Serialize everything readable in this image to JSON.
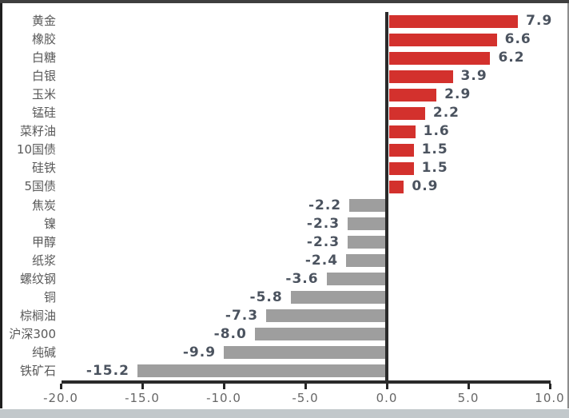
{
  "chart_data": {
    "type": "bar",
    "orientation": "horizontal",
    "title": "",
    "xlabel": "",
    "ylabel": "",
    "categories": [
      "黄金",
      "橡胶",
      "白糖",
      "白银",
      "玉米",
      "锰硅",
      "菜籽油",
      "10国债",
      "硅铁",
      "5国债",
      "焦炭",
      "镍",
      "甲醇",
      "纸浆",
      "螺纹钢",
      "铜",
      "棕榈油",
      "沪深300",
      "纯碱",
      "铁矿石"
    ],
    "values": [
      7.9,
      6.6,
      6.2,
      3.9,
      2.9,
      2.2,
      1.6,
      1.5,
      1.5,
      0.9,
      -2.2,
      -2.3,
      -2.3,
      -2.4,
      -3.6,
      -5.8,
      -7.3,
      -8.0,
      -9.9,
      -15.2
    ],
    "value_labels": [
      "7.9",
      "6.6",
      "6.2",
      "3.9",
      "2.9",
      "2.2",
      "1.6",
      "1.5",
      "1.5",
      "0.9",
      "-2.2",
      "-2.3",
      "-2.3",
      "-2.4",
      "-3.6",
      "-5.8",
      "-7.3",
      "-8.0",
      "-9.9",
      "-15.2"
    ],
    "xlim": [
      -20,
      10
    ],
    "x_ticks": [
      -20,
      -15,
      -10,
      -5,
      0,
      5,
      10
    ],
    "x_tick_labels": [
      "-20.0",
      "-15.0",
      "-10.0",
      "-5.0",
      "0.0",
      "5.0",
      "10.0"
    ],
    "grid": false,
    "legend": "none",
    "positive_color": "#d3312d",
    "negative_color": "#9e9e9e",
    "axis_color": "#2a2a2a",
    "category_label_color": "#595959",
    "value_label_color": "#4b535f",
    "tick_label_color": "#666666"
  }
}
